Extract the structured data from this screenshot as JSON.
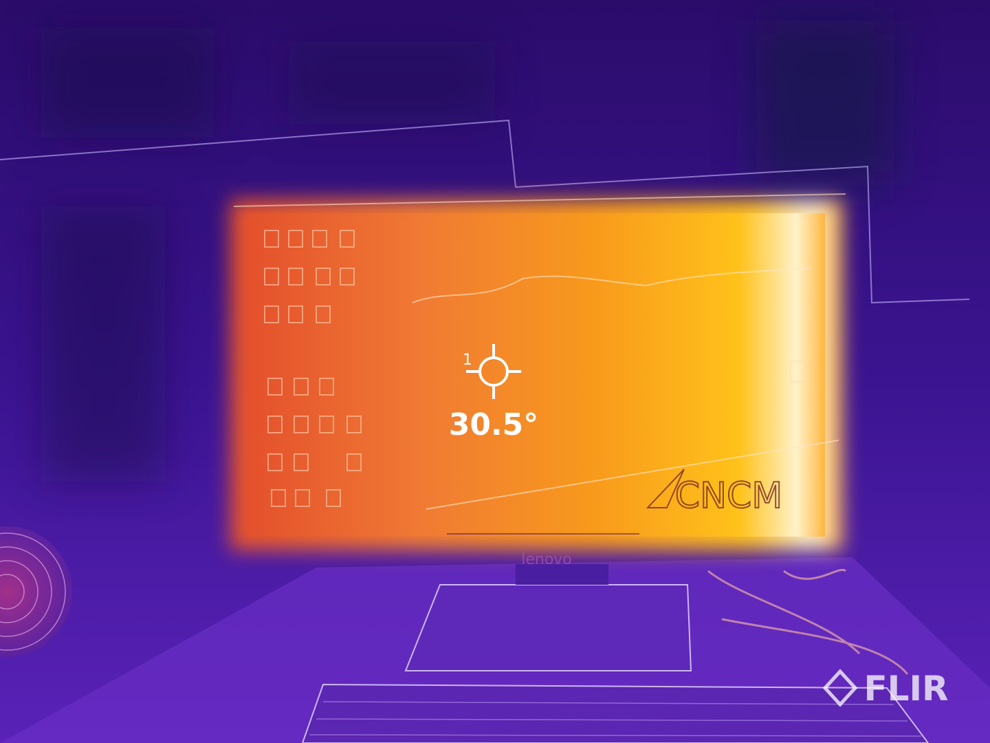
{
  "measurement": {
    "spot_label": "1",
    "temperature": "30.5°"
  },
  "scene": {
    "screen_logo": "CNCM",
    "monitor_brand": "lenovo"
  },
  "watermark": "FLIR"
}
